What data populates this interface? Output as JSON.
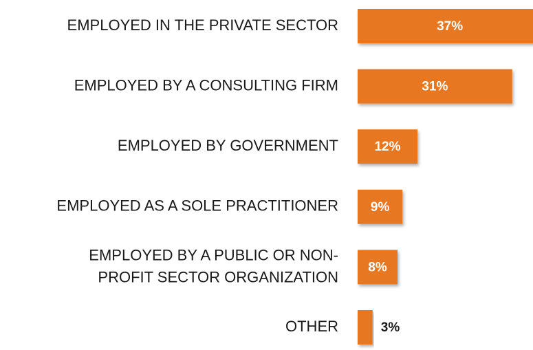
{
  "chart_data": {
    "type": "bar",
    "orientation": "horizontal",
    "categories": [
      "EMPLOYED IN THE PRIVATE SECTOR",
      "EMPLOYED BY A CONSULTING FIRM",
      "EMPLOYED BY GOVERNMENT",
      "EMPLOYED AS A SOLE PRACTITIONER",
      "EMPLOYED BY A PUBLIC OR NON-\nPROFIT SECTOR ORGANIZATION",
      "OTHER"
    ],
    "values": [
      37,
      31,
      12,
      9,
      8,
      3
    ],
    "value_labels": [
      "37%",
      "31%",
      "12%",
      "9%",
      "8%",
      "3%"
    ],
    "color": "#e87722"
  }
}
